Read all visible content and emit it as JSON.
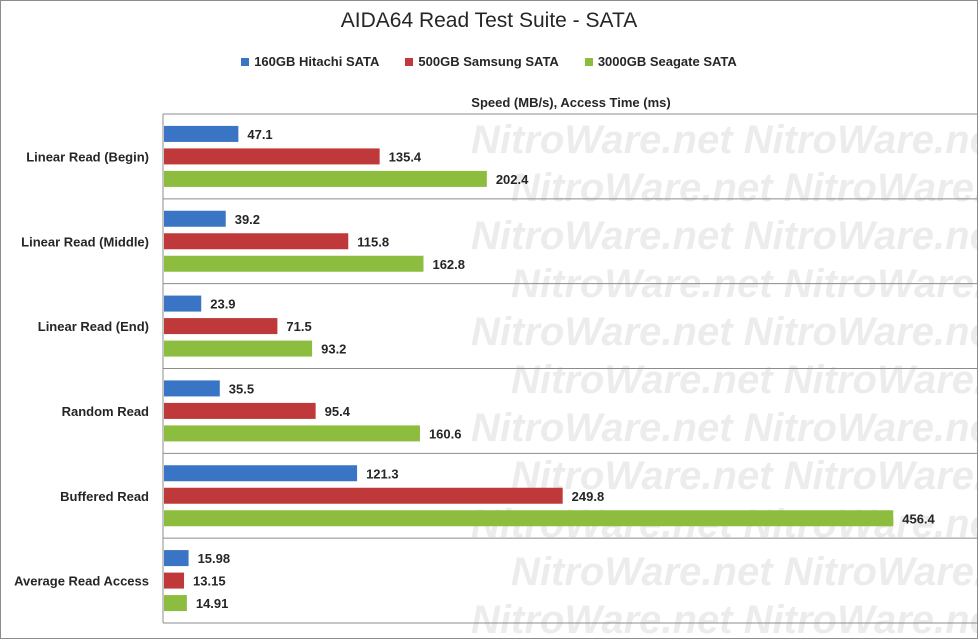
{
  "chart_data": {
    "type": "bar",
    "orientation": "horizontal",
    "title": "AIDA64 Read Test Suite - SATA",
    "xlabel": "Speed (MB/s), Access Time (ms)",
    "categories": [
      "Linear Read (Begin)",
      "Linear Read (Middle)",
      "Linear Read (End)",
      "Random Read",
      "Buffered Read",
      "Average Read Access"
    ],
    "series": [
      {
        "name": "160GB Hitachi SATA",
        "color": "#3a74c4",
        "values": [
          47.1,
          39.2,
          23.9,
          35.5,
          121.3,
          15.98
        ],
        "labels": [
          "47.1",
          "39.2",
          "23.9",
          "35.5",
          "121.3",
          "15.98"
        ]
      },
      {
        "name": "500GB Samsung SATA",
        "color": "#c0393a",
        "values": [
          135.4,
          115.8,
          71.5,
          95.4,
          249.8,
          13.15
        ],
        "labels": [
          "135.4",
          "115.8",
          "71.5",
          "95.4",
          "249.8",
          "13.15"
        ]
      },
      {
        "name": "3000GB Seagate SATA",
        "color": "#8dbd3f",
        "values": [
          202.4,
          162.8,
          93.2,
          160.6,
          456.4,
          14.91
        ],
        "labels": [
          "202.4",
          "162.8",
          "93.2",
          "160.6",
          "456.4",
          "14.91"
        ]
      }
    ],
    "xlim": [
      0,
      500
    ],
    "grid": "horizontal-separators",
    "legend_position": "top"
  },
  "watermark": "NitroWare.net"
}
